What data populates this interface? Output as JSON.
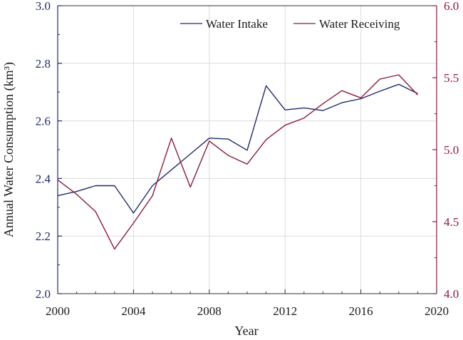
{
  "chart_data": {
    "type": "line",
    "xlabel": "Year",
    "ylabel": "Annual Water Consumption (km³)",
    "y2label": "",
    "xlim": [
      2000,
      2020
    ],
    "ylim": [
      2.0,
      3.0
    ],
    "y2lim": [
      4.0,
      6.0
    ],
    "x_ticks": [
      2000,
      2004,
      2008,
      2012,
      2016,
      2020
    ],
    "y_ticks": [
      "2.0",
      "2.2",
      "2.4",
      "2.6",
      "2.8",
      "3.0"
    ],
    "y2_ticks": [
      "4.0",
      "4.5",
      "5.0",
      "5.5",
      "6.0"
    ],
    "grid": true,
    "legend_position": "top-right",
    "x": [
      2000,
      2001,
      2002,
      2003,
      2004,
      2005,
      2006,
      2007,
      2008,
      2009,
      2010,
      2011,
      2012,
      2013,
      2014,
      2015,
      2016,
      2017,
      2018,
      2019
    ],
    "series": [
      {
        "name": "Water Intake",
        "axis": "left",
        "color": "#1f2a6e",
        "values": [
          2.34,
          2.355,
          2.375,
          2.375,
          2.28,
          2.375,
          2.43,
          2.485,
          2.54,
          2.537,
          2.498,
          2.722,
          2.638,
          2.645,
          2.636,
          2.663,
          2.677,
          2.703,
          2.727,
          2.695
        ]
      },
      {
        "name": "Water Receiving",
        "axis": "right",
        "color": "#8b1a3a",
        "values": [
          4.79,
          4.69,
          4.57,
          4.31,
          4.49,
          4.68,
          5.08,
          4.74,
          5.06,
          4.96,
          4.9,
          5.07,
          5.17,
          5.22,
          5.32,
          5.41,
          5.36,
          5.49,
          5.52,
          5.38
        ]
      }
    ]
  }
}
